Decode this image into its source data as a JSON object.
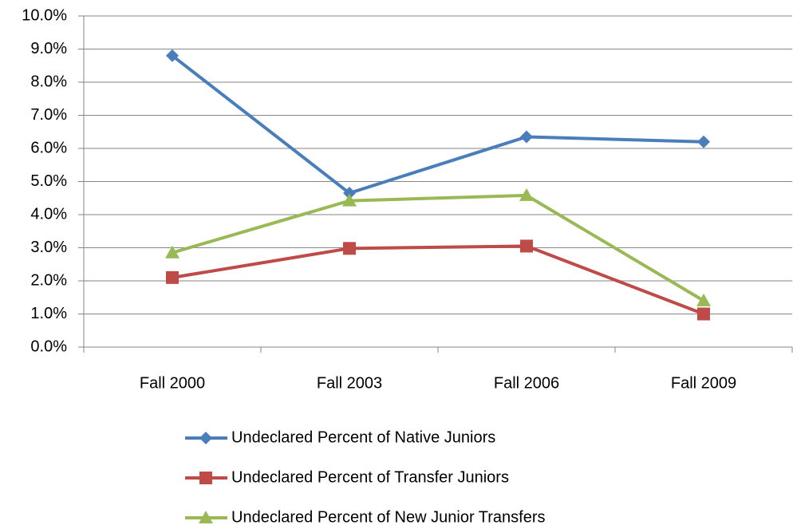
{
  "chart_data": {
    "type": "line",
    "categories": [
      "Fall 2000",
      "Fall 2003",
      "Fall 2006",
      "Fall 2009"
    ],
    "series": [
      {
        "name": "Undeclared Percent of Native Juniors",
        "color": "#4a7ebb",
        "marker": "diamond",
        "values": [
          8.8,
          4.65,
          6.35,
          6.2
        ]
      },
      {
        "name": "Undeclared Percent of Transfer Juniors",
        "color": "#be4b48",
        "marker": "square",
        "values": [
          2.1,
          2.98,
          3.05,
          1.0
        ]
      },
      {
        "name": "Undeclared Percent of New Junior Transfers",
        "color": "#98b954",
        "marker": "triangle",
        "values": [
          2.85,
          4.42,
          4.58,
          1.4
        ]
      }
    ],
    "ylim": [
      0,
      10
    ],
    "yticks": [
      {
        "value": 0,
        "label": "0.0%"
      },
      {
        "value": 1,
        "label": "1.0%"
      },
      {
        "value": 2,
        "label": "2.0%"
      },
      {
        "value": 3,
        "label": "3.0%"
      },
      {
        "value": 4,
        "label": "4.0%"
      },
      {
        "value": 5,
        "label": "5.0%"
      },
      {
        "value": 6,
        "label": "6.0%"
      },
      {
        "value": 7,
        "label": "7.0%"
      },
      {
        "value": 8,
        "label": "8.0%"
      },
      {
        "value": 9,
        "label": "9.0%"
      },
      {
        "value": 10,
        "label": "10.0%"
      }
    ],
    "grid": true,
    "legend": "bottom"
  }
}
